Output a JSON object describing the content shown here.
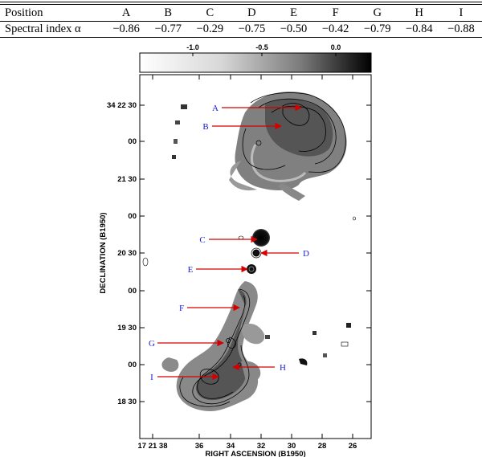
{
  "table": {
    "row1": {
      "head": "Position",
      "cells": [
        "A",
        "B",
        "C",
        "D",
        "E",
        "F",
        "G",
        "H",
        "I"
      ]
    },
    "row2": {
      "head": "Spectral index α",
      "cells": [
        "−0.86",
        "−0.77",
        "−0.29",
        "−0.75",
        "−0.50",
        "−0.42",
        "−0.79",
        "−0.84",
        "−0.88"
      ]
    }
  },
  "figure": {
    "colorbar_ticks": [
      "-1.0",
      "-0.5",
      "0.0"
    ],
    "y_ticks": [
      "34 22 30",
      "00",
      "21 30",
      "00",
      "20 30",
      "00",
      "19 30",
      "00",
      "18 30"
    ],
    "x_ticks": [
      "17 21 38",
      "36",
      "34",
      "32",
      "30",
      "28",
      "26"
    ],
    "ylabel": "DECLINATION (B1950)",
    "xlabel": "RIGHT ASCENSION (B1950)",
    "labels": [
      "A",
      "B",
      "C",
      "D",
      "E",
      "F",
      "G",
      "H",
      "I"
    ]
  }
}
